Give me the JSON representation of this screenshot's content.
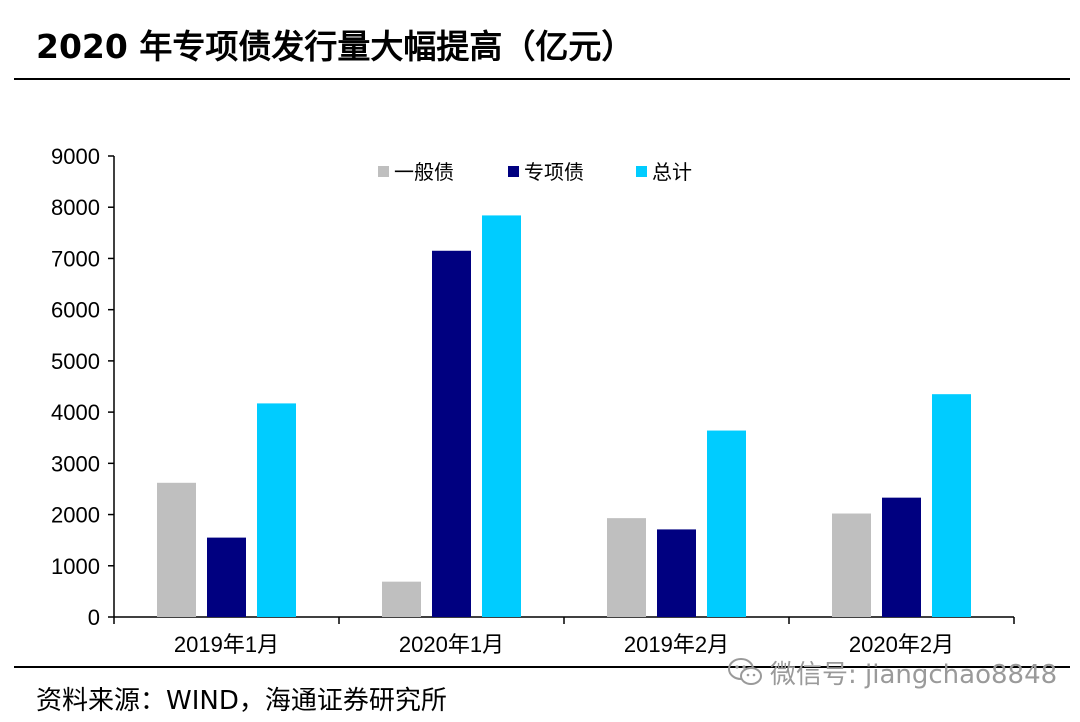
{
  "page": {
    "title": "2020 年专项债发行量大幅提高（亿元）",
    "source": "资料来源：WIND，海通证券研究所",
    "watermark": "微信号: jiangchao8848",
    "watermark_icon": "wechat-icon"
  },
  "chart_data": {
    "type": "bar",
    "categories": [
      "2019年1月",
      "2020年1月",
      "2019年2月",
      "2020年2月"
    ],
    "series": [
      {
        "name": "一般债",
        "color": "#bfbfbf",
        "values": [
          2620,
          690,
          1930,
          2020
        ]
      },
      {
        "name": "专项债",
        "color": "#000080",
        "values": [
          1550,
          7150,
          1710,
          2330
        ]
      },
      {
        "name": "总计",
        "color": "#00ccff",
        "values": [
          4170,
          7840,
          3640,
          4350
        ]
      }
    ],
    "ylim": [
      0,
      9000
    ],
    "yticks": [
      "0",
      "1000",
      "2000",
      "3000",
      "4000",
      "5000",
      "6000",
      "7000",
      "8000",
      "9000"
    ],
    "grid": false,
    "legend_position": "top-center"
  }
}
